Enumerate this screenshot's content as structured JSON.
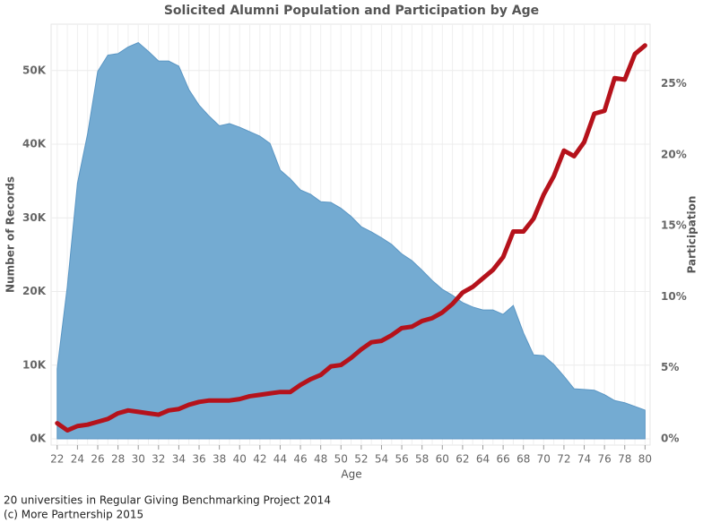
{
  "chart_data": {
    "type": "area-line",
    "title": "Solicited Alumni Population and Participation by Age",
    "x_label": "Age",
    "y_label": "Number of Records",
    "y2_label": "Participation",
    "annotations": [
      "20 universities in Regular Giving Benchmarking Project 2014",
      "(c) More Partnership 2015"
    ],
    "x": [
      22,
      23,
      24,
      25,
      26,
      27,
      28,
      29,
      30,
      31,
      32,
      33,
      34,
      35,
      36,
      37,
      38,
      39,
      40,
      41,
      42,
      43,
      44,
      45,
      46,
      47,
      48,
      49,
      50,
      51,
      52,
      53,
      54,
      55,
      56,
      57,
      58,
      59,
      60,
      61,
      62,
      63,
      64,
      65,
      66,
      67,
      68,
      69,
      70,
      71,
      72,
      73,
      74,
      75,
      76,
      77,
      78,
      79,
      80
    ],
    "series": [
      {
        "name": "Number of Records",
        "type": "area",
        "axis": "y",
        "color": "#74abd2",
        "values": [
          9500,
          20700,
          34700,
          41400,
          49900,
          52100,
          52300,
          53200,
          53800,
          52600,
          51300,
          51300,
          50600,
          47400,
          45300,
          43800,
          42500,
          42800,
          42300,
          41700,
          41100,
          40100,
          36500,
          35300,
          33800,
          33200,
          32200,
          32100,
          31300,
          30200,
          28800,
          28100,
          27300,
          26400,
          25100,
          24200,
          22900,
          21500,
          20300,
          19500,
          18500,
          17900,
          17500,
          17500,
          16900,
          18100,
          14400,
          11400,
          11300,
          10100,
          8500,
          6800,
          6700,
          6600,
          6000,
          5200,
          4900,
          4400,
          3900
        ]
      },
      {
        "name": "Participation",
        "type": "line",
        "axis": "y2",
        "color": "#b5121b",
        "values": [
          1.1,
          0.6,
          0.9,
          1.0,
          1.2,
          1.4,
          1.8,
          2.0,
          1.9,
          1.8,
          1.7,
          2.0,
          2.1,
          2.4,
          2.6,
          2.7,
          2.7,
          2.7,
          2.8,
          3.0,
          3.1,
          3.2,
          3.3,
          3.3,
          3.8,
          4.2,
          4.5,
          5.1,
          5.2,
          5.7,
          6.3,
          6.8,
          6.9,
          7.3,
          7.8,
          7.9,
          8.3,
          8.5,
          8.9,
          9.5,
          10.3,
          10.7,
          11.3,
          11.9,
          12.8,
          14.6,
          14.6,
          15.5,
          17.2,
          18.5,
          20.3,
          19.9,
          20.9,
          22.9,
          23.1,
          25.4,
          25.3,
          27.1,
          27.7
        ]
      }
    ],
    "xlim": [
      21.4,
      80.5
    ],
    "xticks": [
      22,
      24,
      26,
      28,
      30,
      32,
      34,
      36,
      38,
      40,
      42,
      44,
      46,
      48,
      50,
      52,
      54,
      56,
      58,
      60,
      62,
      64,
      66,
      68,
      70,
      72,
      74,
      76,
      78,
      80
    ],
    "ylim": [
      -850,
      56300
    ],
    "yticks": [
      {
        "value": 0,
        "label": "0K"
      },
      {
        "value": 10000,
        "label": "10K"
      },
      {
        "value": 20000,
        "label": "20K"
      },
      {
        "value": 30000,
        "label": "30K"
      },
      {
        "value": 40000,
        "label": "40K"
      },
      {
        "value": 50000,
        "label": "50K"
      }
    ],
    "y2lim": [
      -0.44,
      29.2
    ],
    "y2ticks": [
      {
        "value": 0,
        "label": "0%"
      },
      {
        "value": 5,
        "label": "5%"
      },
      {
        "value": 10,
        "label": "10%"
      },
      {
        "value": 15,
        "label": "15%"
      },
      {
        "value": 20,
        "label": "20%"
      },
      {
        "value": 25,
        "label": "25%"
      }
    ],
    "grid": true
  }
}
